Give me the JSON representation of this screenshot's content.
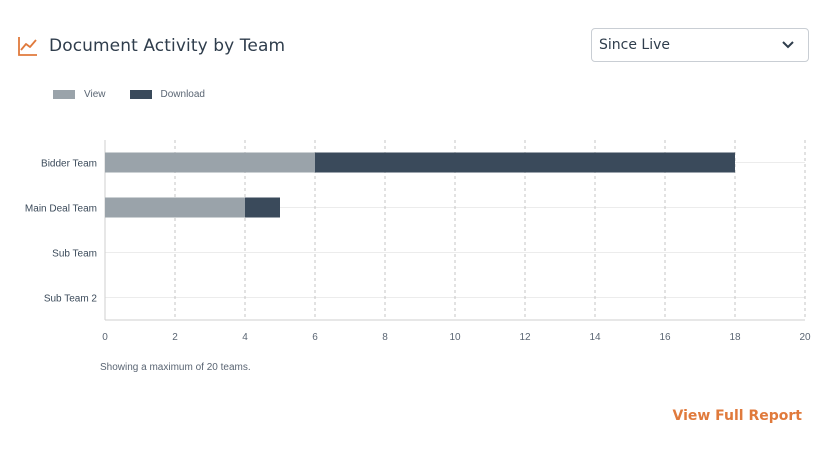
{
  "header": {
    "title": "Document Activity by Team",
    "icon": "line-chart-icon",
    "accent_color": "#e07a3c"
  },
  "filter": {
    "selected": "Since Live",
    "icon": "chevron-down-icon"
  },
  "footnote": "Showing a maximum of 20 teams.",
  "link": {
    "label": "View Full Report",
    "color": "#e07a3c"
  },
  "chart_data": {
    "type": "bar",
    "orientation": "horizontal",
    "stacked": true,
    "categories": [
      "Bidder Team",
      "Main Deal Team",
      "Sub Team",
      "Sub Team 2"
    ],
    "series": [
      {
        "name": "View",
        "color": "#9aa3aa",
        "values": [
          6,
          4,
          0,
          0
        ]
      },
      {
        "name": "Download",
        "color": "#3a4a5b",
        "values": [
          12,
          1,
          0,
          0
        ]
      }
    ],
    "xlim": [
      0,
      20
    ],
    "xticks": [
      0,
      2,
      4,
      6,
      8,
      10,
      12,
      14,
      16,
      18,
      20
    ],
    "grid": true,
    "legend_position": "top-left"
  }
}
